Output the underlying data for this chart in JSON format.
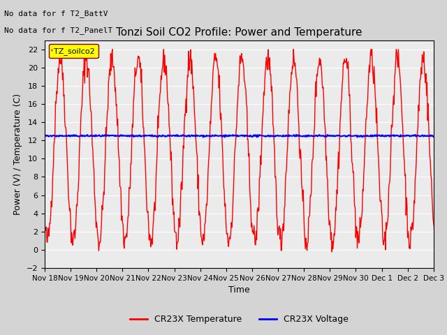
{
  "title": "Tonzi Soil CO2 Profile: Power and Temperature",
  "xlabel": "Time",
  "ylabel": "Power (V) / Temperature (C)",
  "ylim": [
    -2,
    23
  ],
  "yticks": [
    -2,
    0,
    2,
    4,
    6,
    8,
    10,
    12,
    14,
    16,
    18,
    20,
    22
  ],
  "annotation1": "No data for f T2_BattV",
  "annotation2": "No data for f T2_PanelT",
  "legend_label": "TZ_soilco2",
  "line1_label": "CR23X Temperature",
  "line2_label": "CR23X Voltage",
  "line1_color": "red",
  "line2_color": "blue",
  "voltage_level": 12.5,
  "plot_bg_color": "#ebebeb",
  "num_days": 16,
  "x_tick_labels": [
    "Nov 18",
    "Nov 19",
    "Nov 20",
    "Nov 21",
    "Nov 22",
    "Nov 23",
    "Nov 24",
    "Nov 25",
    "Nov 26",
    "Nov 27",
    "Nov 28",
    "Nov 29",
    "Nov 30",
    "Dec 1",
    "Dec 2",
    "Dec 3"
  ],
  "seed": 42
}
